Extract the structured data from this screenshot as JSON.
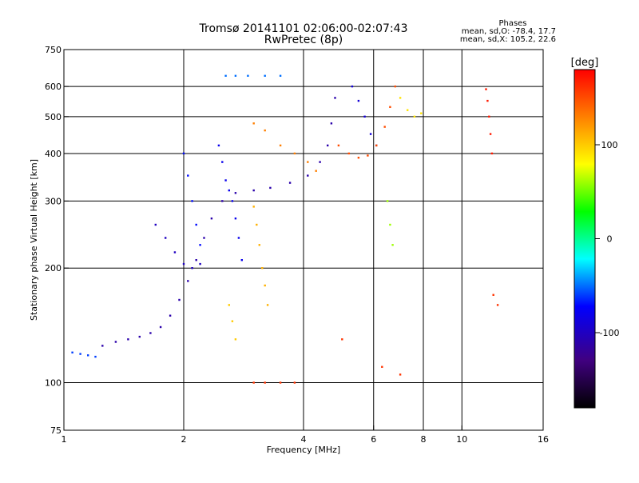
{
  "chart_data": {
    "type": "scatter",
    "title": "Tromsø 20141101 02:06:00-02:07:43",
    "subtitle": "RwPretec (8p)",
    "xlabel": "Frequency [MHz]",
    "ylabel": "Stationary phase Virtual Height [km]",
    "x_scale": "log",
    "y_scale": "log",
    "xlim": [
      1,
      16
    ],
    "ylim": [
      75,
      750
    ],
    "x_ticks": [
      1,
      2,
      4,
      6,
      8,
      10,
      16
    ],
    "y_ticks": [
      75,
      100,
      200,
      300,
      400,
      500,
      600,
      750
    ],
    "x_grid_values": [
      2,
      4,
      6,
      8,
      10
    ],
    "y_grid_values": [
      100,
      200,
      300,
      400,
      500,
      600
    ],
    "grid": true,
    "colorbar": {
      "unit_label": "[deg]",
      "min": -180,
      "max": 180,
      "ticks": [
        100,
        0,
        -100
      ],
      "colors": [
        "#ff0000",
        "#ff8000",
        "#ffff00",
        "#00ff00",
        "#00ffff",
        "#0000ff",
        "#400080",
        "#000000"
      ]
    },
    "stats": {
      "heading": "Phases",
      "o_line": "mean, sd,O: -78.4, 17.7",
      "x_line": "mean, sd,X: 105.2, 22.6"
    },
    "traces": [
      {
        "name": "",
        "phase": -110,
        "points": [
          [
            1.25,
            125
          ],
          [
            1.35,
            128
          ],
          [
            1.45,
            130
          ],
          [
            1.55,
            132
          ],
          [
            1.65,
            135
          ],
          [
            1.75,
            140
          ],
          [
            1.85,
            150
          ],
          [
            1.95,
            165
          ],
          [
            2.05,
            185
          ],
          [
            2.15,
            210
          ],
          [
            2.25,
            240
          ],
          [
            2.35,
            270
          ],
          [
            2.5,
            300
          ],
          [
            2.7,
            315
          ],
          [
            3.0,
            320
          ],
          [
            3.3,
            325
          ],
          [
            3.7,
            335
          ],
          [
            4.1,
            350
          ],
          [
            4.4,
            380
          ],
          [
            4.6,
            420
          ],
          [
            4.7,
            480
          ],
          [
            4.8,
            560
          ]
        ]
      },
      {
        "name": "",
        "phase": -100,
        "points": [
          [
            1.7,
            260
          ],
          [
            1.8,
            240
          ],
          [
            1.9,
            220
          ],
          [
            2.0,
            205
          ],
          [
            2.1,
            200
          ],
          [
            2.2,
            205
          ]
        ]
      },
      {
        "name": "",
        "phase": -70,
        "points": [
          [
            2.0,
            400
          ],
          [
            2.05,
            350
          ],
          [
            2.1,
            300
          ],
          [
            2.15,
            260
          ],
          [
            2.2,
            230
          ]
        ]
      },
      {
        "name": "",
        "phase": -50,
        "points": [
          [
            2.55,
            640
          ],
          [
            2.7,
            640
          ],
          [
            2.9,
            640
          ],
          [
            3.2,
            640
          ],
          [
            3.5,
            640
          ]
        ]
      },
      {
        "name": "",
        "phase": -80,
        "points": [
          [
            2.45,
            420
          ],
          [
            2.5,
            380
          ],
          [
            2.55,
            340
          ],
          [
            2.6,
            320
          ],
          [
            2.65,
            300
          ],
          [
            2.7,
            270
          ],
          [
            2.75,
            240
          ],
          [
            2.8,
            210
          ]
        ]
      },
      {
        "name": "",
        "phase": 130,
        "points": [
          [
            3.0,
            480
          ],
          [
            3.2,
            460
          ],
          [
            3.5,
            420
          ],
          [
            3.8,
            400
          ],
          [
            4.1,
            380
          ],
          [
            4.3,
            360
          ]
        ]
      },
      {
        "name": "",
        "phase": 110,
        "points": [
          [
            3.0,
            290
          ],
          [
            3.05,
            260
          ],
          [
            3.1,
            230
          ],
          [
            3.15,
            200
          ],
          [
            3.2,
            180
          ],
          [
            3.25,
            160
          ]
        ]
      },
      {
        "name": "",
        "phase": 100,
        "points": [
          [
            2.6,
            160
          ],
          [
            2.65,
            145
          ],
          [
            2.7,
            130
          ]
        ]
      },
      {
        "name": "",
        "phase": 160,
        "points": [
          [
            3.0,
            100
          ],
          [
            3.2,
            100
          ],
          [
            3.5,
            100
          ],
          [
            3.8,
            100
          ]
        ]
      },
      {
        "name": "",
        "phase": -90,
        "points": [
          [
            5.3,
            600
          ],
          [
            5.5,
            550
          ],
          [
            5.7,
            500
          ],
          [
            5.9,
            450
          ],
          [
            6.1,
            420
          ]
        ]
      },
      {
        "name": "",
        "phase": 150,
        "points": [
          [
            4.9,
            420
          ],
          [
            5.2,
            400
          ],
          [
            5.5,
            390
          ],
          [
            5.8,
            395
          ],
          [
            6.1,
            420
          ],
          [
            6.4,
            470
          ],
          [
            6.6,
            530
          ],
          [
            6.8,
            600
          ]
        ]
      },
      {
        "name": "",
        "phase": 90,
        "points": [
          [
            7.0,
            560
          ],
          [
            7.3,
            520
          ],
          [
            7.6,
            500
          ],
          [
            7.9,
            510
          ]
        ]
      },
      {
        "name": "",
        "phase": 60,
        "points": [
          [
            6.5,
            300
          ],
          [
            6.6,
            260
          ],
          [
            6.7,
            230
          ]
        ]
      },
      {
        "name": "",
        "phase": -60,
        "points": [
          [
            1.05,
            120
          ],
          [
            1.1,
            119
          ],
          [
            1.15,
            118
          ],
          [
            1.2,
            117
          ]
        ]
      },
      {
        "name": "",
        "phase": 170,
        "points": [
          [
            11.5,
            590
          ],
          [
            11.6,
            550
          ],
          [
            11.7,
            500
          ],
          [
            11.8,
            450
          ],
          [
            11.9,
            400
          ]
        ]
      },
      {
        "name": "",
        "phase": 160,
        "points": [
          [
            12,
            170
          ],
          [
            12.3,
            160
          ],
          [
            6.3,
            110
          ],
          [
            7.0,
            105
          ],
          [
            5.0,
            130
          ]
        ]
      }
    ]
  }
}
